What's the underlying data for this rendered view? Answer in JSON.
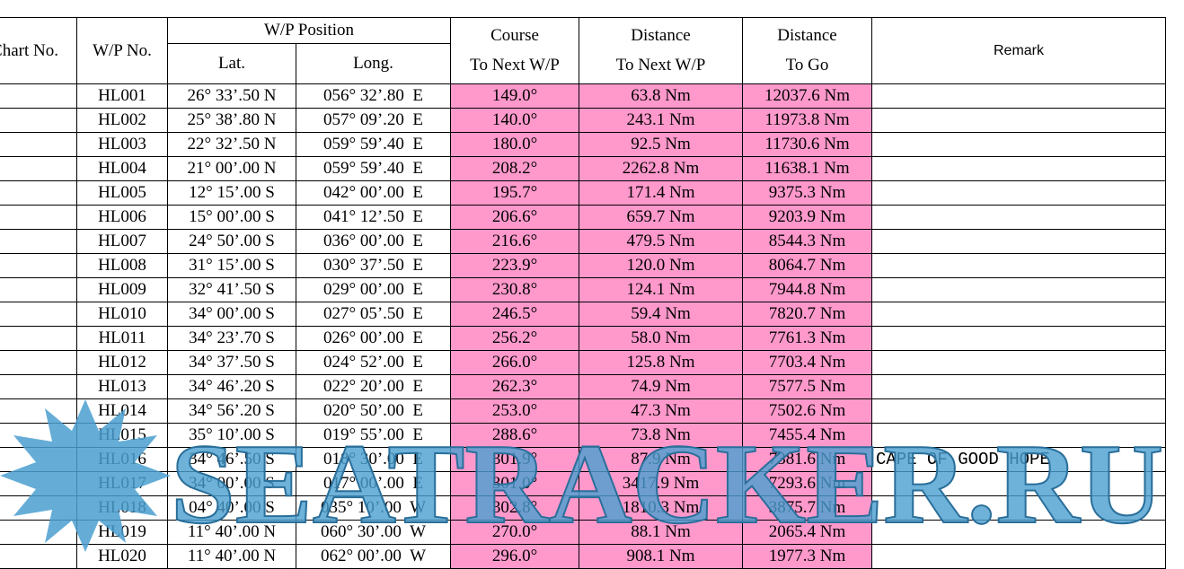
{
  "header": {
    "chart_no": "Chart No.",
    "wp_no": "W/P No.",
    "wp_position": "W/P Position",
    "lat": "Lat.",
    "long": "Long.",
    "course": "Course",
    "course_sub": "To Next W/P",
    "distance": "Distance",
    "distance_sub": "To Next W/P",
    "distance_to_go": "Distance",
    "to_go": "To Go",
    "remark": "Remark"
  },
  "rows": [
    {
      "wp": "HL001",
      "lat": "26° 33’.50 N",
      "long": "056° 32’.80  E",
      "course": "149.0°",
      "distance": "63.8 Nm",
      "to_go": "12037.6 Nm"
    },
    {
      "wp": "HL002",
      "lat": "25° 38’.80 N",
      "long": "057° 09’.20  E",
      "course": "140.0°",
      "distance": "243.1 Nm",
      "to_go": "11973.8 Nm"
    },
    {
      "wp": "HL003",
      "lat": "22° 32’.50 N",
      "long": "059° 59’.40  E",
      "course": "180.0°",
      "distance": "92.5 Nm",
      "to_go": "11730.6 Nm"
    },
    {
      "wp": "HL004",
      "lat": "21° 00’.00 N",
      "long": "059° 59’.40  E",
      "course": "208.2°",
      "distance": "2262.8 Nm",
      "to_go": "11638.1 Nm"
    },
    {
      "wp": "HL005",
      "lat": "12° 15’.00 S",
      "long": "042° 00’.00  E",
      "course": "195.7°",
      "distance": "171.4 Nm",
      "to_go": "9375.3 Nm"
    },
    {
      "wp": "HL006",
      "lat": "15° 00’.00 S",
      "long": "041° 12’.50  E",
      "course": "206.6°",
      "distance": "659.7 Nm",
      "to_go": "9203.9 Nm"
    },
    {
      "wp": "HL007",
      "lat": "24° 50’.00 S",
      "long": "036° 00’.00  E",
      "course": "216.6°",
      "distance": "479.5 Nm",
      "to_go": "8544.3 Nm"
    },
    {
      "wp": "HL008",
      "lat": "31° 15’.00 S",
      "long": "030° 37’.50  E",
      "course": "223.9°",
      "distance": "120.0 Nm",
      "to_go": "8064.7 Nm"
    },
    {
      "wp": "HL009",
      "lat": "32° 41’.50 S",
      "long": "029° 00’.00  E",
      "course": "230.8°",
      "distance": "124.1 Nm",
      "to_go": "7944.8 Nm"
    },
    {
      "wp": "HL010",
      "lat": "34° 00’.00 S",
      "long": "027° 05’.50  E",
      "course": "246.5°",
      "distance": "59.4 Nm",
      "to_go": "7820.7 Nm"
    },
    {
      "wp": "HL011",
      "lat": "34° 23’.70 S",
      "long": "026° 00’.00  E",
      "course": "256.2°",
      "distance": "58.0 Nm",
      "to_go": "7761.3 Nm"
    },
    {
      "wp": "HL012",
      "lat": "34° 37’.50 S",
      "long": "024° 52’.00  E",
      "course": "266.0°",
      "distance": "125.8 Nm",
      "to_go": "7703.4 Nm"
    },
    {
      "wp": "HL013",
      "lat": "34° 46’.20 S",
      "long": "022° 20’.00  E",
      "course": "262.3°",
      "distance": "74.9 Nm",
      "to_go": "7577.5 Nm"
    },
    {
      "wp": "HL014",
      "lat": "34° 56’.20 S",
      "long": "020° 50’.00  E",
      "course": "253.0°",
      "distance": "47.3 Nm",
      "to_go": "7502.6 Nm"
    },
    {
      "wp": "HL015",
      "lat": "35° 10’.00 S",
      "long": "019° 55’.00  E",
      "course": "288.6°",
      "distance": "73.8 Nm",
      "to_go": "7455.4 Nm"
    },
    {
      "wp": "HL016",
      "lat": "34° 46’.50 S",
      "long": "018° 30’.00  E",
      "course": "301.9°",
      "distance": "87.9 Nm",
      "to_go": "7381.6 Nm",
      "remark": "CAPE OF GOOD HOPE"
    },
    {
      "wp": "HL017",
      "lat": "34° 00’.00 S",
      "long": "017° 00’.00  E",
      "course": "301.0°",
      "distance": "3417.9 Nm",
      "to_go": "7293.6 Nm"
    },
    {
      "wp": "HL018",
      "lat": "04° 40’.00 S",
      "long": "035° 10’.00  W",
      "course": "302.8°",
      "distance": "1810.3 Nm",
      "to_go": "3875.7 Nm"
    },
    {
      "wp": "HL019",
      "lat": "11° 40’.00 N",
      "long": "060° 30’.00  W",
      "course": "270.0°",
      "distance": "88.1 Nm",
      "to_go": "2065.4 Nm"
    },
    {
      "wp": "HL020",
      "lat": "11° 40’.00 N",
      "long": "062° 00’.00  W",
      "course": "296.0°",
      "distance": "908.1 Nm",
      "to_go": "1977.3 Nm"
    }
  ],
  "watermark": "SEATRACKER.RU"
}
